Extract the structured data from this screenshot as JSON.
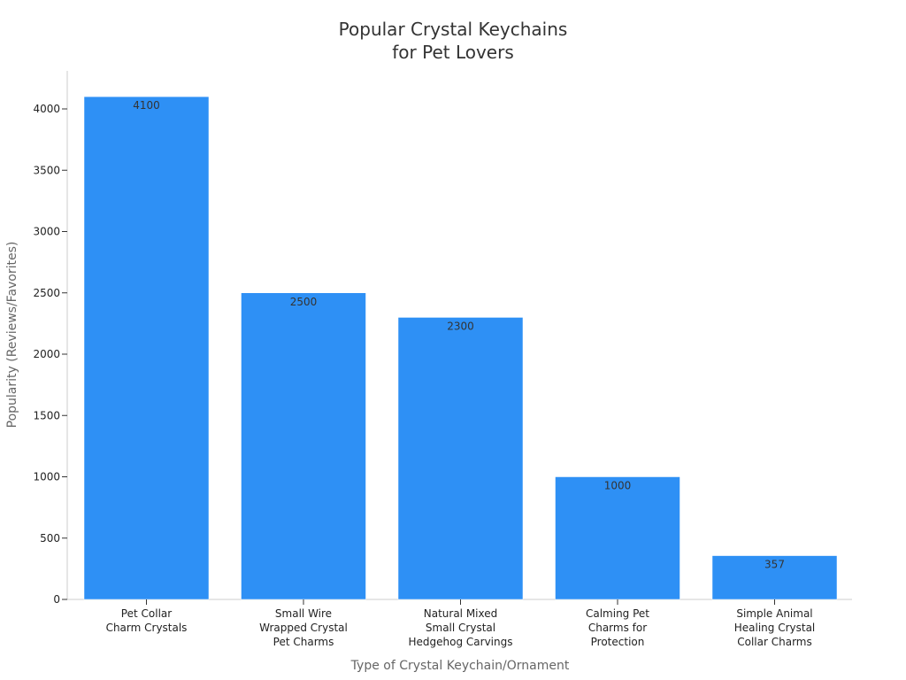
{
  "chart_data": {
    "type": "bar",
    "title": [
      "Popular Crystal Keychains",
      "for Pet Lovers"
    ],
    "xlabel": "Type of Crystal Keychain/Ornament",
    "ylabel": "Popularity (Reviews/Favorites)",
    "categories": [
      [
        "Pet Collar",
        "Charm Crystals"
      ],
      [
        "Small Wire",
        "Wrapped Crystal",
        "Pet Charms"
      ],
      [
        "Natural Mixed",
        "Small Crystal",
        "Hedgehog Carvings"
      ],
      [
        "Calming Pet",
        "Charms for",
        "Protection"
      ],
      [
        "Simple Animal",
        "Healing Crystal",
        "Collar Charms"
      ]
    ],
    "values": [
      4100,
      2500,
      2300,
      1000,
      357
    ],
    "ylim": [
      0,
      4300
    ],
    "yticks": [
      0,
      500,
      1000,
      1500,
      2000,
      2500,
      3000,
      3500,
      4000
    ],
    "bar_color": "#2e90f5",
    "grid": false,
    "data_labels": true
  }
}
